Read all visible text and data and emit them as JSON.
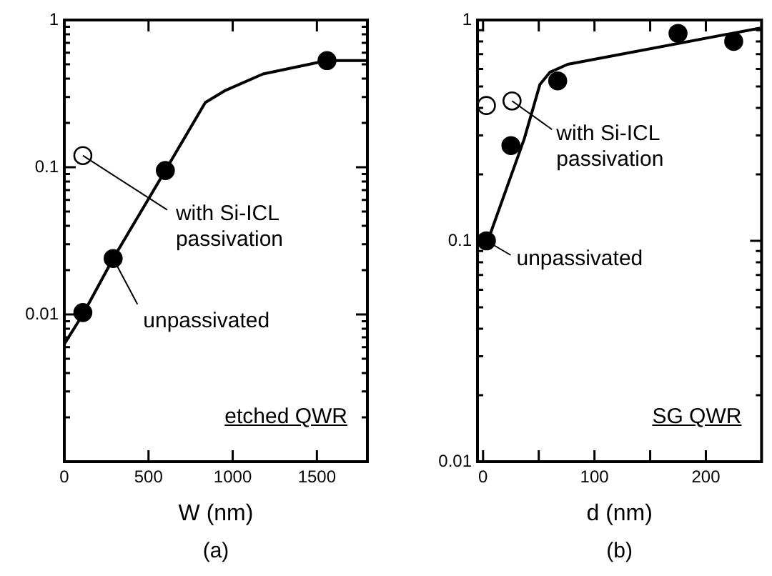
{
  "chart_data": [
    {
      "type": "scatter",
      "xlabel": "W (nm)",
      "xlim": [
        0,
        1800
      ],
      "xticks": [
        0,
        500,
        1000,
        1500
      ],
      "ylim": [
        0.001,
        1
      ],
      "log": "y",
      "grid": false,
      "yticks": [
        {
          "value": 0.001,
          "label": null
        },
        {
          "value": 0.002,
          "label": null
        },
        {
          "value": 0.003,
          "label": null
        },
        {
          "value": 0.004,
          "label": null
        },
        {
          "value": 0.005,
          "label": null
        },
        {
          "value": 0.006,
          "label": null
        },
        {
          "value": 0.007,
          "label": null
        },
        {
          "value": 0.008,
          "label": null
        },
        {
          "value": 0.009,
          "label": null
        },
        0.01,
        {
          "value": 0.02,
          "label": null
        },
        {
          "value": 0.03,
          "label": null
        },
        {
          "value": 0.04,
          "label": null
        },
        {
          "value": 0.05,
          "label": null
        },
        {
          "value": 0.06,
          "label": null
        },
        {
          "value": 0.07,
          "label": null
        },
        {
          "value": 0.08,
          "label": null
        },
        {
          "value": 0.09,
          "label": null
        },
        0.1,
        {
          "value": 0.2,
          "label": null
        },
        {
          "value": 0.3,
          "label": null
        },
        {
          "value": 0.4,
          "label": null
        },
        {
          "value": 0.5,
          "label": null
        },
        {
          "value": 0.6,
          "label": null
        },
        {
          "value": 0.7,
          "label": null
        },
        {
          "value": 0.8,
          "label": null
        },
        {
          "value": 0.9,
          "label": null
        },
        1
      ],
      "series": [
        {
          "type": "line",
          "marker": "none",
          "color": "#000000",
          "x": [
            0,
            110,
            290,
            600,
            837,
            951,
            1180,
            1560,
            1800
          ],
          "values": [
            0.0063,
            0.01,
            0.024,
            0.095,
            0.275,
            0.33,
            0.43,
            0.53,
            0.53
          ]
        },
        {
          "type": "scatter",
          "marker": "circle",
          "color": "#000000",
          "x": [
            110,
            290,
            600,
            1560
          ],
          "values": [
            0.0103,
            0.024,
            0.095,
            0.53
          ]
        },
        {
          "type": "scatter",
          "marker": "circle",
          "color": "#ffffff",
          "x": [
            110
          ],
          "values": [
            0.12
          ]
        }
      ],
      "annotations": [
        {
          "text": "with Si-ICL passivation",
          "x": 110,
          "y": 0.12
        },
        {
          "text": "unpassivated",
          "x": 290,
          "y": 0.024
        },
        "etched QWR",
        "(a)"
      ]
    },
    {
      "type": "scatter",
      "xlabel": "d (nm)",
      "xlim": [
        -5,
        250
      ],
      "xticks": [
        0,
        {
          "value": 50,
          "label": null
        },
        100,
        {
          "value": 150,
          "label": null
        },
        200
      ],
      "ylim": [
        0.01,
        1
      ],
      "log": "y",
      "grid": false,
      "yticks": [
        0.01,
        {
          "value": 0.02,
          "label": null
        },
        {
          "value": 0.03,
          "label": null
        },
        {
          "value": 0.04,
          "label": null
        },
        {
          "value": 0.05,
          "label": null
        },
        {
          "value": 0.06,
          "label": null
        },
        {
          "value": 0.07,
          "label": null
        },
        {
          "value": 0.08,
          "label": null
        },
        {
          "value": 0.09,
          "label": null
        },
        0.1,
        {
          "value": 0.2,
          "label": null
        },
        {
          "value": 0.3,
          "label": null
        },
        {
          "value": 0.4,
          "label": null
        },
        {
          "value": 0.5,
          "label": null
        },
        {
          "value": 0.6,
          "label": null
        },
        {
          "value": 0.7,
          "label": null
        },
        {
          "value": 0.8,
          "label": null
        },
        {
          "value": 0.9,
          "label": null
        },
        1
      ],
      "series": [
        {
          "type": "line",
          "marker": "none",
          "color": "#000000",
          "x": [
            3,
            37,
            51,
            60,
            76,
            249
          ],
          "values": [
            0.096,
            0.29,
            0.51,
            0.58,
            0.63,
            0.92
          ]
        },
        {
          "type": "scatter",
          "marker": "circle",
          "color": "#000000",
          "x": [
            3,
            25,
            67,
            175,
            225
          ],
          "values": [
            0.1,
            0.27,
            0.53,
            0.87,
            0.8
          ]
        },
        {
          "type": "scatter",
          "marker": "circle",
          "color": "#ffffff",
          "x": [
            3,
            26
          ],
          "values": [
            0.41,
            0.43
          ]
        }
      ],
      "annotations": [
        {
          "text": "with Si-ICL passivation",
          "x": 26,
          "y": 0.43
        },
        {
          "text": "unpassivated",
          "x": 3,
          "y": 0.1
        },
        "SG QWR",
        "(b)"
      ]
    }
  ]
}
